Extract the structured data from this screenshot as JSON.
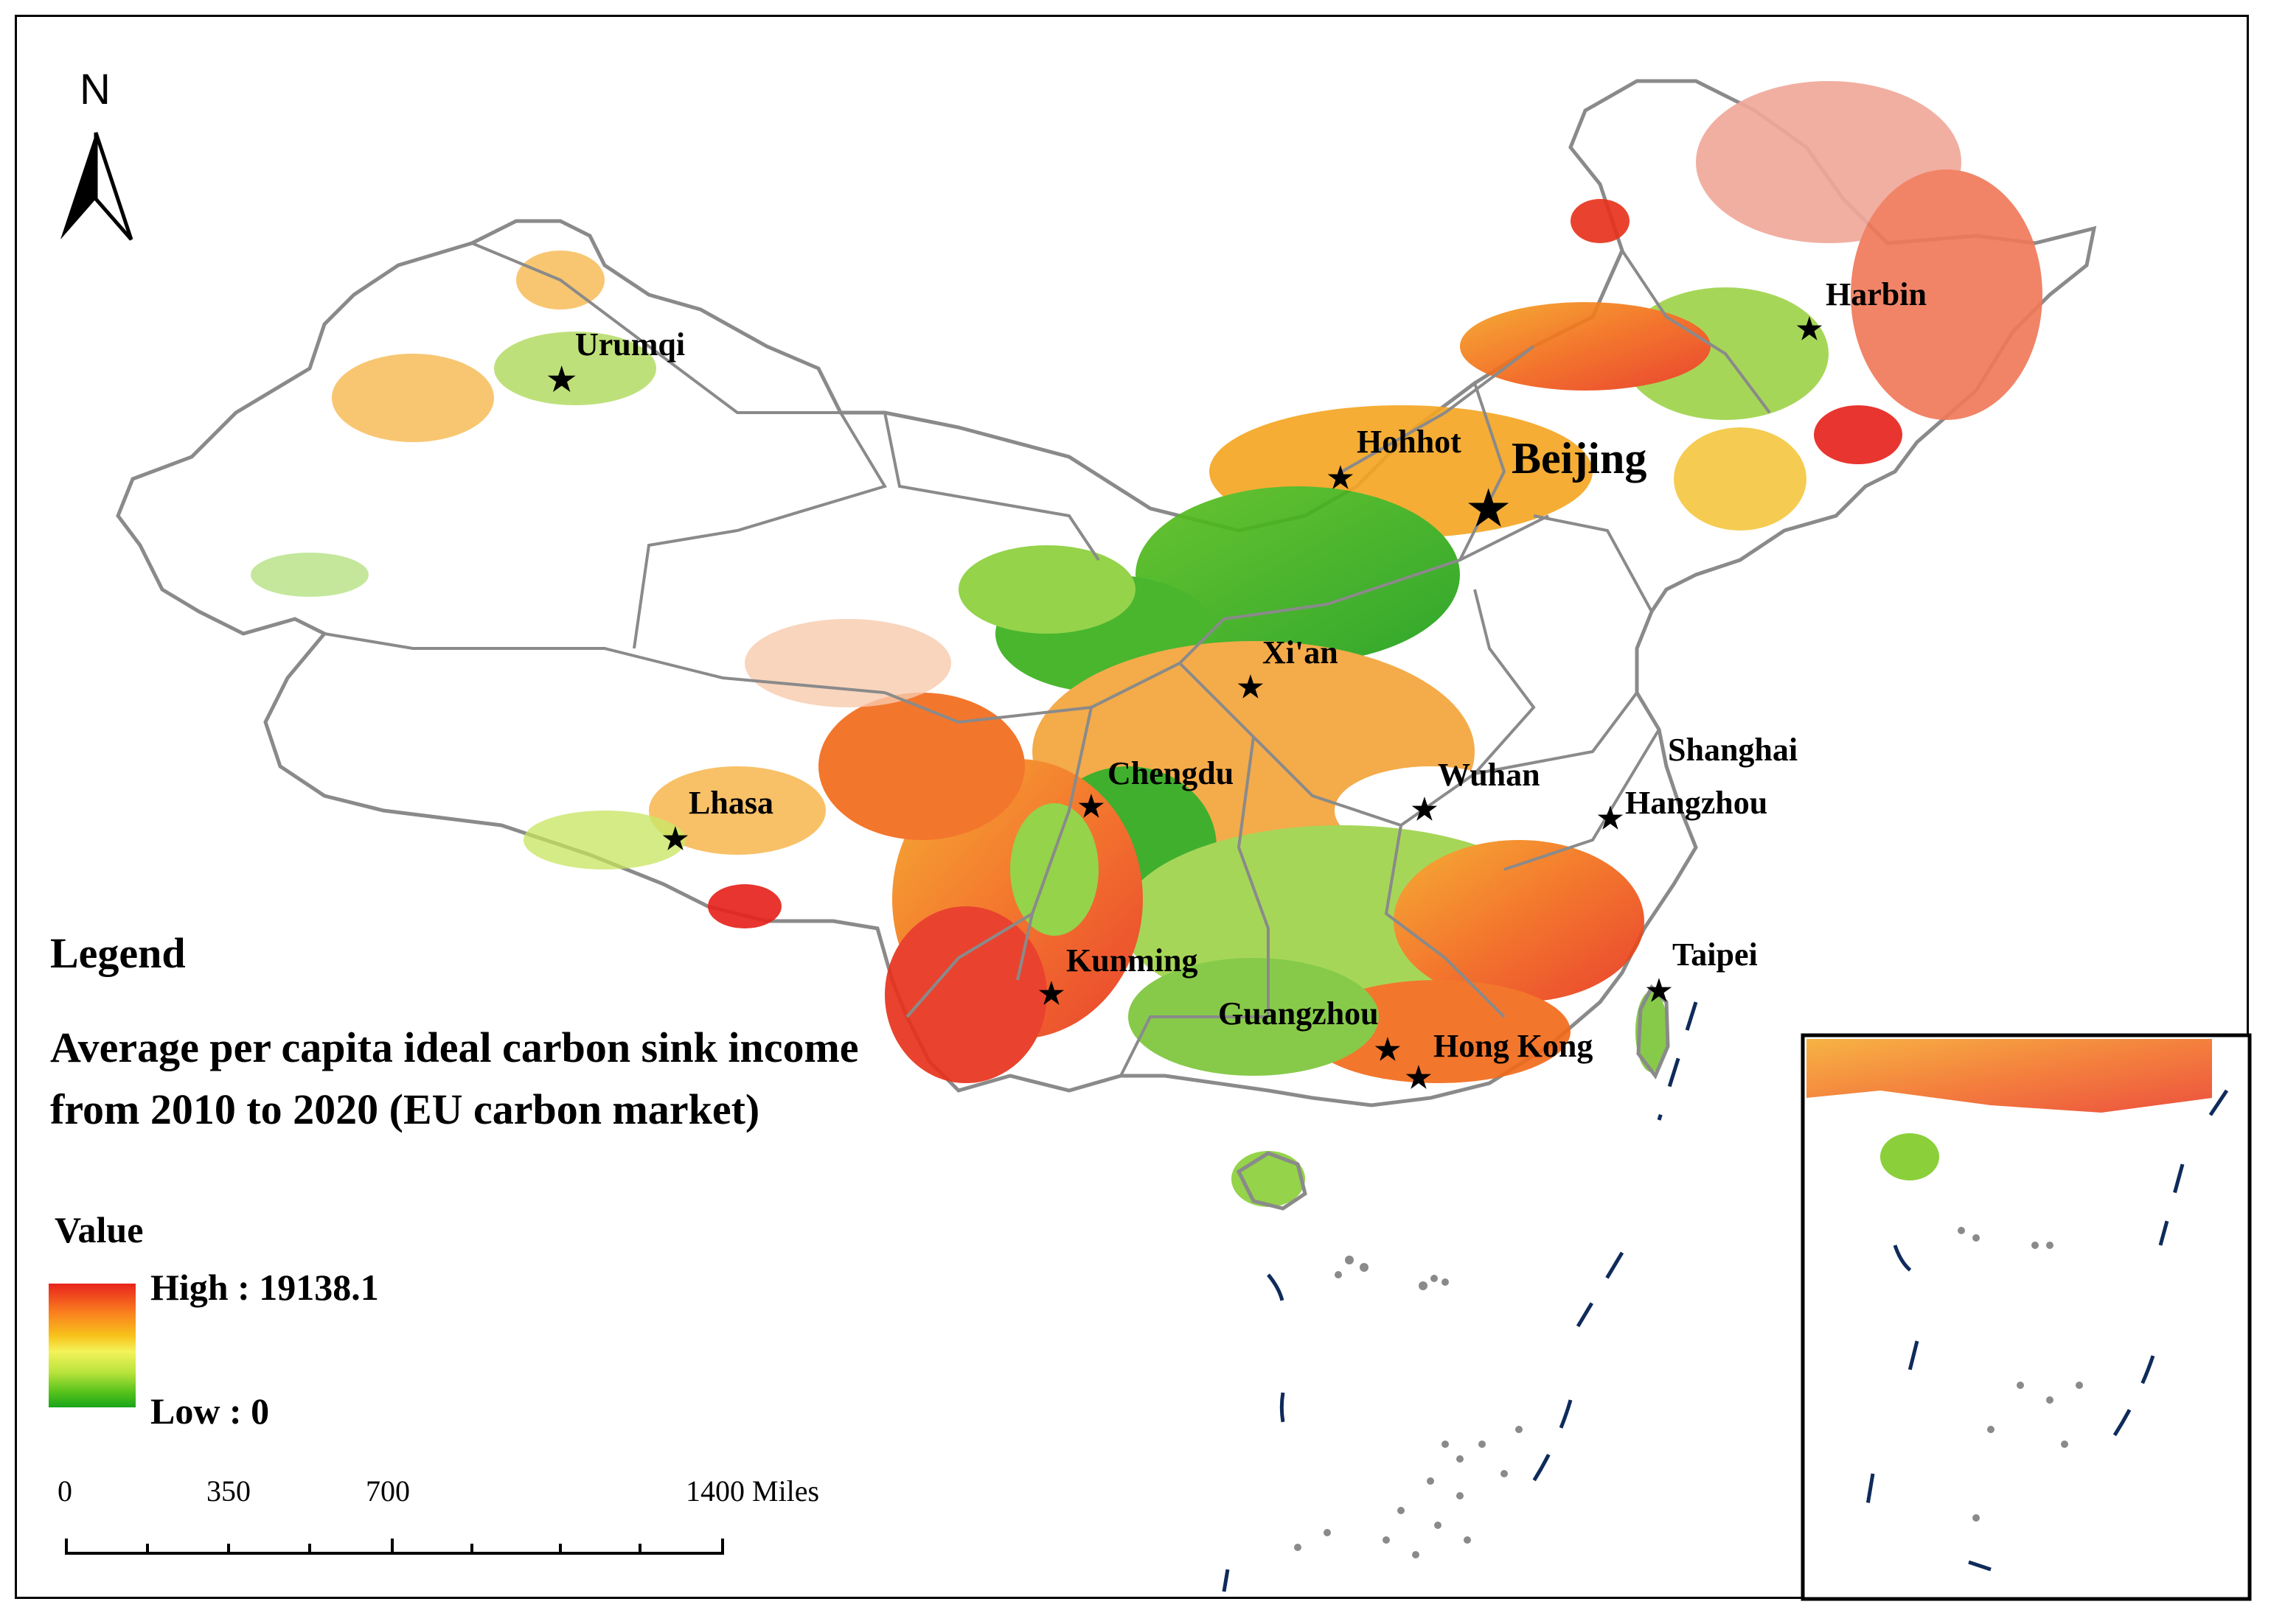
{
  "north_label": "N",
  "cities": [
    {
      "key": "urumqi",
      "name": "Urumqi"
    },
    {
      "key": "harbin",
      "name": "Harbin"
    },
    {
      "key": "hohhot",
      "name": "Hohhot"
    },
    {
      "key": "beijing",
      "name": "Beijing"
    },
    {
      "key": "xian",
      "name": "Xi'an"
    },
    {
      "key": "shanghai",
      "name": "Shanghai"
    },
    {
      "key": "chengdu",
      "name": "Chengdu"
    },
    {
      "key": "wuhan",
      "name": "Wuhan"
    },
    {
      "key": "hangzhou",
      "name": "Hangzhou"
    },
    {
      "key": "lhasa",
      "name": "Lhasa"
    },
    {
      "key": "taipei",
      "name": "Taipei"
    },
    {
      "key": "kunming",
      "name": "Kunming"
    },
    {
      "key": "guangzhou",
      "name": "Guangzhou"
    },
    {
      "key": "hongkong",
      "name": "Hong Kong"
    }
  ],
  "legend": {
    "title": "Legend",
    "description": "Average per capita ideal carbon sink income from 2010 to 2020 (EU carbon market)",
    "value_label": "Value",
    "high_label": "High : 19138.1",
    "low_label": "Low : 0",
    "colors": {
      "high": "#e8231d",
      "mid": "#f3f35a",
      "low": "#18a51a"
    }
  },
  "scale_bar": {
    "labels": [
      "0",
      "350",
      "700",
      "1400 Miles"
    ]
  },
  "colors": {
    "boundary": "#8a8a8a",
    "capital_star": "#e8231d",
    "city_star": "#000000",
    "dashed_line": "#0f2b5b"
  }
}
